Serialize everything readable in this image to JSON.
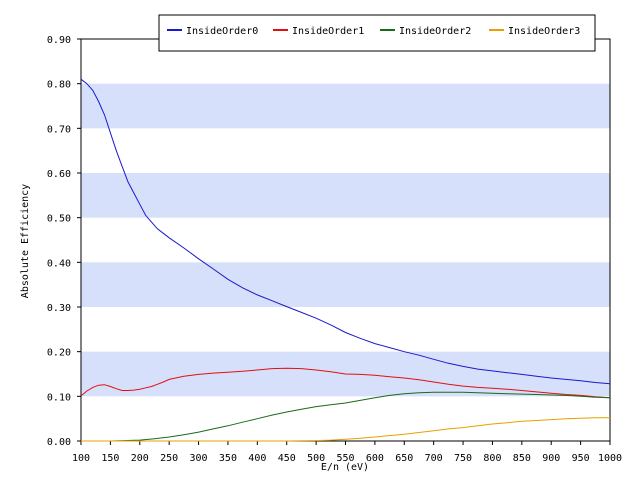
{
  "chart_data": {
    "type": "line",
    "title": "",
    "xlabel": "E/n (eV)",
    "ylabel": "Absolute Efficiency",
    "xlim": [
      100,
      1000
    ],
    "ylim": [
      0,
      0.9
    ],
    "x_ticks": [
      100,
      150,
      200,
      250,
      300,
      350,
      400,
      450,
      500,
      550,
      600,
      650,
      700,
      750,
      800,
      850,
      900,
      950,
      1000
    ],
    "y_ticks": [
      0.0,
      0.1,
      0.2,
      0.3,
      0.4,
      0.5,
      0.6,
      0.7,
      0.8,
      0.9
    ],
    "x_tick_labels": [
      "100",
      "150",
      "200",
      "250",
      "300",
      "350",
      "400",
      "450",
      "500",
      "550",
      "600",
      "650",
      "700",
      "750",
      "800",
      "850",
      "900",
      "950",
      "1000"
    ],
    "y_tick_labels": [
      "0.00",
      "0.10",
      "0.20",
      "0.30",
      "0.40",
      "0.50",
      "0.60",
      "0.70",
      "0.80",
      "0.90"
    ],
    "grid": "alternating horizontal bands",
    "band_color": "#d6e0fa",
    "legend_position": "top",
    "series": [
      {
        "name": "InsideOrder0",
        "color": "#1a1acc",
        "x": [
          100,
          110,
          120,
          130,
          140,
          150,
          160,
          170,
          180,
          190,
          200,
          210,
          220,
          230,
          240,
          250,
          275,
          300,
          325,
          350,
          375,
          400,
          425,
          450,
          475,
          500,
          525,
          550,
          575,
          600,
          625,
          650,
          675,
          700,
          725,
          750,
          775,
          800,
          825,
          850,
          875,
          900,
          925,
          950,
          975,
          1000
        ],
        "y": [
          0.81,
          0.8,
          0.785,
          0.76,
          0.73,
          0.69,
          0.65,
          0.615,
          0.58,
          0.555,
          0.53,
          0.505,
          0.49,
          0.475,
          0.465,
          0.455,
          0.432,
          0.408,
          0.385,
          0.362,
          0.343,
          0.327,
          0.314,
          0.301,
          0.288,
          0.275,
          0.26,
          0.243,
          0.23,
          0.218,
          0.209,
          0.2,
          0.192,
          0.183,
          0.174,
          0.167,
          0.161,
          0.157,
          0.153,
          0.149,
          0.145,
          0.141,
          0.138,
          0.135,
          0.131,
          0.128
        ]
      },
      {
        "name": "InsideOrder1",
        "color": "#e01010",
        "x": [
          100,
          110,
          120,
          130,
          140,
          150,
          160,
          170,
          180,
          190,
          200,
          210,
          220,
          230,
          240,
          250,
          275,
          300,
          325,
          350,
          375,
          400,
          425,
          450,
          475,
          500,
          525,
          550,
          575,
          600,
          625,
          650,
          675,
          700,
          725,
          750,
          775,
          800,
          825,
          850,
          875,
          900,
          925,
          950,
          975,
          1000
        ],
        "y": [
          0.101,
          0.112,
          0.12,
          0.125,
          0.126,
          0.122,
          0.117,
          0.113,
          0.113,
          0.114,
          0.116,
          0.119,
          0.122,
          0.127,
          0.132,
          0.138,
          0.145,
          0.149,
          0.152,
          0.154,
          0.156,
          0.159,
          0.162,
          0.163,
          0.162,
          0.159,
          0.155,
          0.15,
          0.149,
          0.147,
          0.144,
          0.141,
          0.137,
          0.132,
          0.127,
          0.123,
          0.12,
          0.118,
          0.116,
          0.113,
          0.11,
          0.107,
          0.104,
          0.102,
          0.099,
          0.097
        ]
      },
      {
        "name": "InsideOrder2",
        "color": "#1a6a1a",
        "x": [
          100,
          150,
          200,
          225,
          250,
          275,
          300,
          325,
          350,
          375,
          400,
          425,
          450,
          475,
          500,
          525,
          550,
          575,
          600,
          625,
          650,
          675,
          700,
          725,
          750,
          775,
          800,
          825,
          850,
          875,
          900,
          925,
          950,
          975,
          1000
        ],
        "y": [
          0.0,
          0.0,
          0.002,
          0.005,
          0.009,
          0.014,
          0.02,
          0.027,
          0.034,
          0.042,
          0.05,
          0.058,
          0.065,
          0.071,
          0.077,
          0.081,
          0.085,
          0.091,
          0.097,
          0.102,
          0.106,
          0.108,
          0.109,
          0.109,
          0.109,
          0.108,
          0.107,
          0.106,
          0.105,
          0.104,
          0.103,
          0.102,
          0.1,
          0.098,
          0.097
        ]
      },
      {
        "name": "InsideOrder3",
        "color": "#e8a000",
        "x": [
          100,
          200,
          300,
          400,
          450,
          500,
          525,
          550,
          575,
          600,
          625,
          650,
          675,
          700,
          725,
          750,
          775,
          800,
          825,
          850,
          875,
          900,
          925,
          950,
          975,
          1000
        ],
        "y": [
          0.0,
          0.0,
          0.0,
          0.0,
          0.0,
          0.001,
          0.002,
          0.004,
          0.006,
          0.009,
          0.012,
          0.015,
          0.019,
          0.023,
          0.027,
          0.03,
          0.034,
          0.038,
          0.041,
          0.044,
          0.046,
          0.048,
          0.05,
          0.051,
          0.052,
          0.052
        ]
      }
    ]
  }
}
